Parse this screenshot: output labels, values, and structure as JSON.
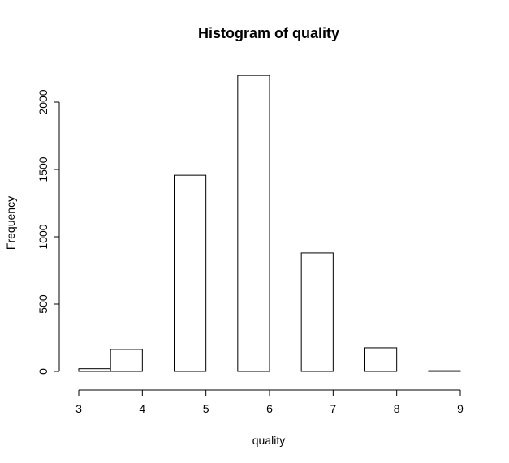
{
  "chart_data": {
    "type": "bar",
    "title": "Histogram of quality",
    "xlabel": "quality",
    "ylabel": "Frequency",
    "bins": [
      {
        "start": 3.0,
        "end": 3.5,
        "count": 20
      },
      {
        "start": 3.5,
        "end": 4.0,
        "count": 163
      },
      {
        "start": 4.0,
        "end": 4.5,
        "count": 0
      },
      {
        "start": 4.5,
        "end": 5.0,
        "count": 1457
      },
      {
        "start": 5.0,
        "end": 5.5,
        "count": 0
      },
      {
        "start": 5.5,
        "end": 6.0,
        "count": 2198
      },
      {
        "start": 6.0,
        "end": 6.5,
        "count": 0
      },
      {
        "start": 6.5,
        "end": 7.0,
        "count": 880
      },
      {
        "start": 7.0,
        "end": 7.5,
        "count": 0
      },
      {
        "start": 7.5,
        "end": 8.0,
        "count": 175
      },
      {
        "start": 8.0,
        "end": 8.5,
        "count": 0
      },
      {
        "start": 8.5,
        "end": 9.0,
        "count": 5
      }
    ],
    "xlim": [
      3,
      9
    ],
    "ylim": [
      0,
      2200
    ],
    "x_ticks": [
      "3",
      "4",
      "5",
      "6",
      "7",
      "8",
      "9"
    ],
    "y_ticks": [
      "0",
      "500",
      "1000",
      "1500",
      "2000"
    ],
    "grid": false,
    "bar_fill": "#ffffff",
    "bar_stroke": "#000000"
  }
}
